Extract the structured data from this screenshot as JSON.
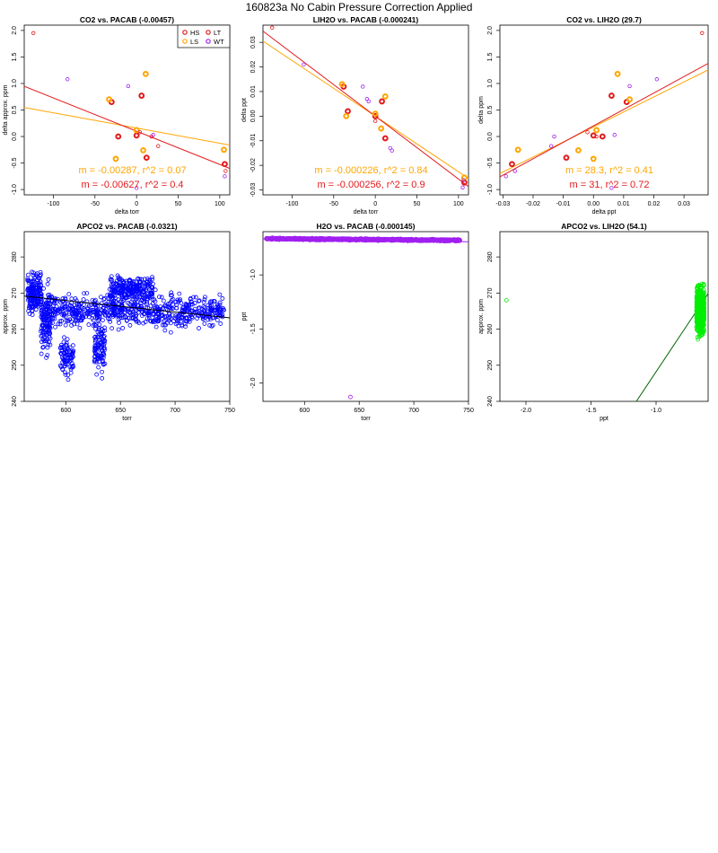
{
  "page": {
    "title": "160823a   No Cabin Pressure Correction Applied"
  },
  "colors": {
    "HS": "#e31a1c",
    "LS": "#ffa500",
    "LT": "#e31a1c",
    "WT": "#a020f0",
    "blue": "#0000ff",
    "purple": "#a020f0",
    "green": "#00ee00",
    "darkgreen": "#006400",
    "black": "#000000"
  },
  "chart_data": [
    {
      "type": "scatter",
      "title": "CO2 vs. PACAB (-0.00457)",
      "xlabel": "delta torr",
      "ylabel": "delta approx. ppm",
      "xlim": [
        -135,
        112
      ],
      "ylim": [
        -1.1,
        2.1
      ],
      "xticks": [
        -100,
        -50,
        0,
        50,
        100
      ],
      "yticks": [
        -1.0,
        -0.5,
        0.0,
        0.5,
        1.0,
        1.5,
        2.0
      ],
      "ytick_labels": [
        "-1.0",
        "-0.5",
        "0.0",
        "0.5",
        "1.0",
        "1.5",
        "2.0"
      ],
      "legend": {
        "position": "top-right",
        "entries": [
          "HS",
          "LS",
          "LT",
          "WT"
        ]
      },
      "series": [
        {
          "name": "HS",
          "color": "#e31a1c",
          "thick": true,
          "x": [
            -30,
            -22,
            0,
            6,
            12,
            106
          ],
          "y": [
            0.65,
            0.0,
            0.02,
            0.77,
            -0.4,
            -0.52
          ]
        },
        {
          "name": "LS",
          "color": "#ffa500",
          "thick": true,
          "x": [
            -33,
            -25,
            0,
            8,
            11,
            105
          ],
          "y": [
            0.7,
            -0.42,
            0.12,
            -0.26,
            1.18,
            -0.25
          ]
        },
        {
          "name": "LT",
          "color": "#e31a1c",
          "thick": false,
          "x": [
            -124,
            4,
            18,
            26,
            107
          ],
          "y": [
            1.95,
            0.08,
            0.0,
            -0.18,
            -0.65
          ]
        },
        {
          "name": "WT",
          "color": "#a020f0",
          "thick": false,
          "x": [
            -83,
            -10,
            20,
            0,
            106
          ],
          "y": [
            1.08,
            0.95,
            0.03,
            -0.97,
            -0.75
          ]
        }
      ],
      "fits": [
        {
          "name": "LS",
          "color": "#ffa500",
          "slope": -0.00287,
          "intercept": 0.16
        },
        {
          "name": "HS",
          "color": "#e31a1c",
          "slope": -0.00627,
          "intercept": 0.1
        }
      ],
      "annotations": [
        {
          "text": "m = -0.00287, r^2 = 0.07",
          "color": "#ffa500"
        },
        {
          "text": "m = -0.00627, r^2 = 0.4",
          "color": "#e31a1c"
        }
      ]
    },
    {
      "type": "scatter",
      "title": "LIH2O vs. PACAB (-0.000241)",
      "xlabel": "delta torr",
      "ylabel": "delta ppt",
      "xlim": [
        -135,
        112
      ],
      "ylim": [
        -0.032,
        0.037
      ],
      "xticks": [
        -100,
        -50,
        0,
        50,
        100
      ],
      "yticks": [
        -0.03,
        -0.02,
        -0.01,
        0.0,
        0.01,
        0.02,
        0.03
      ],
      "ytick_labels": [
        "-0.03",
        "-0.02",
        "-0.01",
        "0.00",
        "0.01",
        "0.02",
        "0.03"
      ],
      "series": [
        {
          "name": "HS",
          "color": "#e31a1c",
          "thick": true,
          "x": [
            -38,
            -33,
            0,
            8,
            12,
            107
          ],
          "y": [
            0.012,
            0.002,
            0.0,
            0.006,
            -0.009,
            -0.027
          ]
        },
        {
          "name": "LS",
          "color": "#ffa500",
          "thick": true,
          "x": [
            -40,
            -35,
            0,
            7,
            12,
            107
          ],
          "y": [
            0.013,
            0.0,
            0.001,
            -0.005,
            0.008,
            -0.025
          ]
        },
        {
          "name": "LT",
          "color": "#e31a1c",
          "thick": false,
          "x": [
            -124,
            0
          ],
          "y": [
            0.036,
            -0.002
          ]
        },
        {
          "name": "WT",
          "color": "#a020f0",
          "thick": false,
          "x": [
            -86,
            -15,
            -10,
            -8,
            20,
            18,
            105,
            106
          ],
          "y": [
            0.021,
            0.012,
            0.007,
            0.006,
            -0.014,
            -0.013,
            -0.029,
            -0.026
          ]
        }
      ],
      "fits": [
        {
          "name": "LS",
          "color": "#ffa500",
          "slope": -0.000226,
          "intercept": 0.0
        },
        {
          "name": "HS",
          "color": "#e31a1c",
          "slope": -0.000256,
          "intercept": 0.0
        }
      ],
      "annotations": [
        {
          "text": "m = -0.000226, r^2 = 0.84",
          "color": "#ffa500"
        },
        {
          "text": "m = -0.000256, r^2 = 0.9",
          "color": "#e31a1c"
        }
      ]
    },
    {
      "type": "scatter",
      "title": "CO2 vs. LIH2O (29.7)",
      "xlabel": "delta ppt",
      "ylabel": "delta ppm",
      "xlim": [
        -0.031,
        0.038
      ],
      "ylim": [
        -1.1,
        2.1
      ],
      "xticks": [
        -0.03,
        -0.02,
        -0.01,
        0.0,
        0.01,
        0.02,
        0.03
      ],
      "xtick_labels": [
        "-0.03",
        "-0.02",
        "-0.01",
        "0.00",
        "0.01",
        "0.02",
        "0.03"
      ],
      "yticks": [
        -1.0,
        -0.5,
        0.0,
        0.5,
        1.0,
        1.5,
        2.0
      ],
      "ytick_labels": [
        "-1.0",
        "-0.5",
        "0.0",
        "0.5",
        "1.0",
        "1.5",
        "2.0"
      ],
      "series": [
        {
          "name": "HS",
          "color": "#e31a1c",
          "thick": true,
          "x": [
            -0.027,
            -0.009,
            0.0,
            0.003,
            0.006,
            0.011
          ],
          "y": [
            -0.52,
            -0.4,
            0.02,
            0.0,
            0.77,
            0.65
          ]
        },
        {
          "name": "LS",
          "color": "#ffa500",
          "thick": true,
          "x": [
            -0.025,
            -0.005,
            0.0,
            0.001,
            0.008,
            0.012
          ],
          "y": [
            -0.25,
            -0.26,
            -0.42,
            0.12,
            1.18,
            0.7
          ]
        },
        {
          "name": "LT",
          "color": "#e31a1c",
          "thick": false,
          "x": [
            0.036,
            -0.002,
            0.001
          ],
          "y": [
            1.95,
            0.08,
            0.0
          ]
        },
        {
          "name": "WT",
          "color": "#a020f0",
          "thick": false,
          "x": [
            -0.029,
            -0.026,
            -0.014,
            -0.013,
            0.021,
            0.012,
            0.006,
            0.007
          ],
          "y": [
            -0.75,
            -0.65,
            -0.18,
            0.0,
            1.08,
            0.95,
            -0.97,
            0.03
          ]
        }
      ],
      "fits": [
        {
          "name": "LS",
          "color": "#ffa500",
          "slope": 28.3,
          "intercept": 0.18
        },
        {
          "name": "HS",
          "color": "#e31a1c",
          "slope": 31,
          "intercept": 0.2
        }
      ],
      "annotations": [
        {
          "text": "m = 28.3, r^2 = 0.41",
          "color": "#ffa500"
        },
        {
          "text": "m = 31, r^2 = 0.72",
          "color": "#e31a1c"
        }
      ]
    },
    {
      "type": "scatter",
      "title": "APCO2 vs. PACAB (-0.0321)",
      "xlabel": "torr",
      "ylabel": "approx. ppm",
      "xlim": [
        562,
        750
      ],
      "ylim": [
        240,
        287
      ],
      "xticks": [
        600,
        650,
        700,
        750
      ],
      "yticks": [
        240,
        250,
        260,
        270,
        280
      ],
      "color": "#0000ff",
      "fit": {
        "slope": -0.0321,
        "intercept": 287.2,
        "color": "#000000"
      }
    },
    {
      "type": "scatter",
      "title": "H2O vs. PACAB (-0.000145)",
      "xlabel": "torr",
      "ylabel": "ppt",
      "xlim": [
        562,
        750
      ],
      "ylim": [
        -2.17,
        -0.6
      ],
      "xticks": [
        600,
        650,
        700,
        750
      ],
      "yticks": [
        -2.0,
        -1.5,
        -1.0
      ],
      "ytick_labels": [
        "-2.0",
        "-1.5",
        "-1.0"
      ],
      "color": "#a020f0",
      "band": {
        "x": [
          565,
          742
        ],
        "y": [
          -0.665,
          -0.68
        ]
      },
      "outliers": [
        {
          "x": 642,
          "y": -2.13
        }
      ],
      "fit": {
        "slope": -0.000145,
        "intercept": -0.585,
        "color": "#a020f0"
      }
    },
    {
      "type": "scatter",
      "title": "APCO2 vs. LIH2O (54.1)",
      "xlabel": "ppt",
      "ylabel": "approx. ppm",
      "xlim": [
        -2.2,
        -0.6
      ],
      "ylim": [
        240,
        287
      ],
      "xticks": [
        -2.0,
        -1.5,
        -1.0
      ],
      "xtick_labels": [
        "-2.0",
        "-1.5",
        "-1.0"
      ],
      "yticks": [
        240,
        250,
        260,
        270,
        280
      ],
      "color": "#00ee00",
      "cluster": {
        "x": [
          -0.69,
          -0.63
        ],
        "y": [
          243,
          285
        ]
      },
      "outliers": [
        {
          "x": -2.15,
          "y": 268
        }
      ],
      "fit": {
        "slope": 54.1,
        "intercept": 302.3,
        "color": "#006400"
      }
    }
  ]
}
